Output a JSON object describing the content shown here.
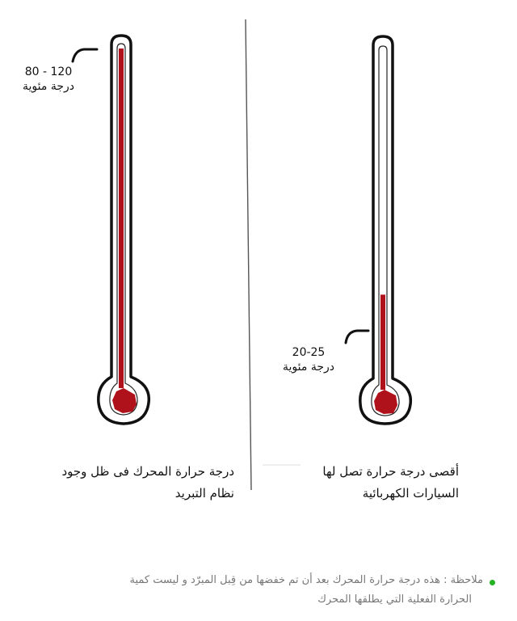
{
  "colors": {
    "mercury": "#b0121b",
    "outline": "#111111",
    "divider": "#555555",
    "note_text": "#777777",
    "note_bullet": "#23b323"
  },
  "left_thermometer": {
    "fill_level": 1.0,
    "reading_line1": "80 - 120",
    "reading_line2": "درجة مئوية",
    "caption_line1": "درجة حرارة المحرك فى ظل وجود",
    "caption_line2": "نظام التبريد"
  },
  "right_thermometer": {
    "fill_level": 0.28,
    "reading_line1": "20-25",
    "reading_line2": "درجة مئوية",
    "caption_line1": "أقصى درجة حرارة تصل لها",
    "caption_line2": "السيارات الكهربائية"
  },
  "note": {
    "line1": "ملاحظة : هذه درجة حرارة المحرك بعد أن تم خفضها من قِبل المبرّد و ليست كمية",
    "line2": "الحرارة الفعلية التي يطلقها المحرك"
  }
}
